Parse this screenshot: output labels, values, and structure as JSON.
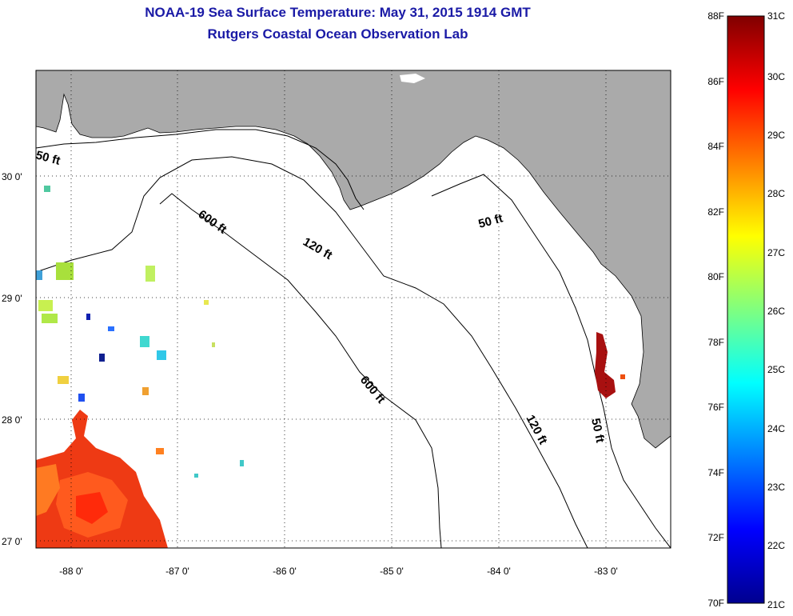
{
  "title": "NOAA-19 Sea Surface Temperature:  May 31, 2015 1914 GMT",
  "subtitle": "Rutgers Coastal Ocean Observation Lab",
  "map": {
    "lat_labels": [
      "30 0'",
      "29 0'",
      "28 0'",
      "27 0'"
    ],
    "lon_labels": [
      "-88 0'",
      "-87 0'",
      "-86 0'",
      "-85 0'",
      "-84 0'",
      "-83 0'"
    ],
    "contour_labels": [
      "50 ft",
      "600 ft",
      "120 ft",
      "50 ft",
      "600 ft",
      "120 ft",
      "50 ft"
    ],
    "land_color": "#aaaaaa",
    "water_color": "#ffffff"
  },
  "colorbar": {
    "fahrenheit": [
      "88F",
      "86F",
      "84F",
      "82F",
      "80F",
      "78F",
      "76F",
      "74F",
      "72F",
      "70F"
    ],
    "celsius": [
      "31C",
      "30C",
      "29C",
      "28C",
      "27C",
      "26C",
      "25C",
      "24C",
      "23C",
      "22C",
      "21C"
    ]
  }
}
